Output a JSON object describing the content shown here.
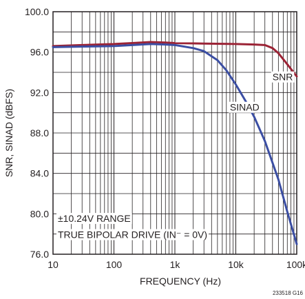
{
  "chart_data": {
    "type": "line",
    "xlabel": "FREQUENCY (Hz)",
    "ylabel": "SNR, SINAD (dBFS)",
    "x_scale": "log",
    "xlim": [
      10,
      100000
    ],
    "ylim": [
      76.0,
      100.0
    ],
    "x_ticks": [
      10,
      100,
      1000,
      10000,
      100000
    ],
    "x_tick_labels": [
      "10",
      "100",
      "1k",
      "10k",
      "100k"
    ],
    "y_ticks": [
      76.0,
      80.0,
      84.0,
      88.0,
      92.0,
      96.0,
      100.0
    ],
    "y_tick_labels": [
      "76.0",
      "80.0",
      "84.0",
      "88.0",
      "92.0",
      "96.0",
      "100.0"
    ],
    "grid": true,
    "series": [
      {
        "name": "SNR",
        "color": "#9b2335",
        "x": [
          10,
          30,
          100,
          200,
          400,
          700,
          1000,
          3000,
          10000,
          20000,
          30000,
          40000,
          50000,
          70000,
          100000
        ],
        "y": [
          96.6,
          96.7,
          96.8,
          96.9,
          97.0,
          96.95,
          96.9,
          96.85,
          96.8,
          96.75,
          96.7,
          96.4,
          95.9,
          94.8,
          93.6
        ]
      },
      {
        "name": "SINAD",
        "color": "#3b4ea3",
        "x": [
          10,
          30,
          100,
          200,
          400,
          700,
          1000,
          2000,
          3000,
          5000,
          7000,
          10000,
          15000,
          20000,
          30000,
          50000,
          70000,
          100000
        ],
        "y": [
          96.5,
          96.55,
          96.6,
          96.7,
          96.8,
          96.75,
          96.7,
          96.4,
          96.1,
          95.2,
          94.2,
          92.8,
          91.0,
          89.6,
          87.2,
          83.4,
          80.2,
          77.0
        ]
      }
    ],
    "annotations": [
      {
        "text": "SNR",
        "x": 40000,
        "y": 93.2
      },
      {
        "text": "SINAD",
        "x": 8000,
        "y": 90.2
      },
      {
        "text": "±10.24V RANGE",
        "x": 12,
        "y": 79.2
      },
      {
        "text": "TRUE BIPOLAR DRIVE (IN⁻ = 0V)",
        "x": 12,
        "y": 77.6
      }
    ],
    "figure_id": "233518 G16"
  }
}
